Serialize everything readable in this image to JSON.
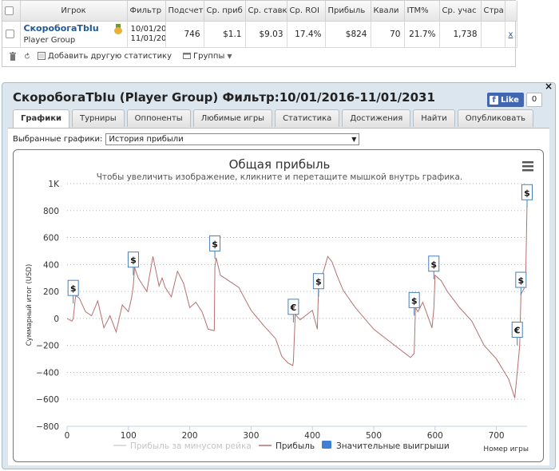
{
  "stats_table": {
    "columns": [
      "",
      "Игрок",
      "Фильтр",
      "Подсчет",
      "Ср. приб",
      "Ср. ставк",
      "Ср. ROI",
      "Прибыль",
      "Квали",
      "ITM%",
      "Ср. учас",
      "Стра",
      ""
    ],
    "row": {
      "player_name": "СкоробогаТbIu",
      "player_group": "Player Group",
      "filter_from": "10/01/20",
      "filter_to": "11/01/20",
      "count": "746",
      "avg_profit": "$1.1",
      "avg_stake": "$9.03",
      "avg_roi": "17.4%",
      "profit": "$824",
      "quali": "70",
      "itm": "21.7%",
      "avg_entrants": "1,738",
      "remove": "x"
    },
    "footer": {
      "add_stat": "Добавить другую статистику",
      "groups": "Группы"
    }
  },
  "panel": {
    "title": "СкоробогаТbIu (Player Group) Фильтр:10/01/2016-11/01/2031",
    "like_label": "Like",
    "like_count": "0",
    "close": "×",
    "tabs": [
      "Графики",
      "Турниры",
      "Оппоненты",
      "Любимые игры",
      "Статистика",
      "Достижения",
      "Найти",
      "Опубликовать"
    ],
    "select_label": "Выбранные графики:",
    "select_value": "История прибыли"
  },
  "chart_data": {
    "type": "line",
    "title": "Общая прибыль",
    "subtitle": "Чтобы увеличить изображение, кликните и перетащите мышкой внутрь графика.",
    "xlabel": "Номер игры",
    "ylabel": "Суммарный итог (USD)",
    "xlim": [
      0,
      750
    ],
    "ylim": [
      -800,
      1000
    ],
    "xticks": [
      0,
      100,
      200,
      300,
      400,
      500,
      600,
      700
    ],
    "yticks": [
      -800,
      -600,
      -400,
      -200,
      0,
      200,
      400,
      600,
      800,
      1000
    ],
    "ytick_labels": [
      "−800",
      "−600",
      "−400",
      "−200",
      "0",
      "200",
      "400",
      "600",
      "800",
      "1K"
    ],
    "grid": "horizontal-dotted",
    "legend": [
      "Прибыль за минусом рейка",
      "Прибыль",
      "Значительные выигрыши"
    ],
    "legend_position": "bottom",
    "series": [
      {
        "name": "Прибыль",
        "color": "#b5706f",
        "x": [
          0,
          8,
          10,
          14,
          20,
          30,
          40,
          50,
          60,
          70,
          80,
          90,
          100,
          105,
          108,
          110,
          116,
          130,
          140,
          150,
          155,
          160,
          170,
          180,
          190,
          200,
          210,
          220,
          230,
          240,
          241,
          243,
          250,
          270,
          280,
          300,
          320,
          340,
          350,
          360,
          368,
          369,
          372,
          380,
          400,
          408,
          410,
          415,
          425,
          432,
          440,
          450,
          470,
          500,
          520,
          560,
          566,
          568,
          572,
          580,
          595,
          598,
          600,
          610,
          620,
          640,
          660,
          680,
          700,
          720,
          730,
          734,
          738,
          740,
          745,
          748,
          750
        ],
        "y": [
          0,
          -20,
          0,
          170,
          150,
          50,
          20,
          130,
          -70,
          20,
          -100,
          100,
          50,
          150,
          240,
          380,
          300,
          200,
          460,
          240,
          300,
          230,
          160,
          350,
          260,
          80,
          120,
          50,
          -80,
          -90,
          380,
          450,
          320,
          260,
          230,
          60,
          -50,
          -150,
          -280,
          -330,
          -350,
          -320,
          30,
          -10,
          60,
          -80,
          220,
          300,
          460,
          420,
          320,
          210,
          80,
          -80,
          -150,
          -290,
          -260,
          80,
          50,
          120,
          -70,
          70,
          320,
          280,
          200,
          80,
          -20,
          -200,
          -300,
          -450,
          -590,
          -400,
          -200,
          180,
          220,
          350,
          860
        ]
      }
    ],
    "markers": [
      {
        "x": 10,
        "y": 170,
        "symbol": "$"
      },
      {
        "x": 108,
        "y": 380,
        "symbol": "$"
      },
      {
        "x": 241,
        "y": 500,
        "symbol": "$"
      },
      {
        "x": 369,
        "y": 30,
        "symbol": "€"
      },
      {
        "x": 410,
        "y": 220,
        "symbol": "$"
      },
      {
        "x": 566,
        "y": 80,
        "symbol": "$"
      },
      {
        "x": 598,
        "y": 350,
        "symbol": "$"
      },
      {
        "x": 734,
        "y": -140,
        "symbol": "€"
      },
      {
        "x": 740,
        "y": 230,
        "symbol": "$"
      },
      {
        "x": 750,
        "y": 880,
        "symbol": "$"
      }
    ]
  }
}
